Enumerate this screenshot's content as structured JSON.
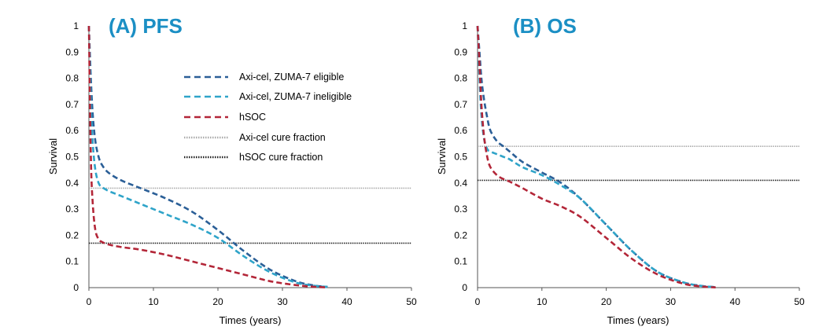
{
  "chart_data": [
    {
      "type": "line",
      "title": "(A) PFS",
      "xlabel": "Times (years)",
      "ylabel": "Survival",
      "xlim": [
        0,
        50
      ],
      "ylim": [
        0,
        1
      ],
      "xticks": [
        "0",
        "10",
        "20",
        "30",
        "40",
        "50"
      ],
      "yticks": [
        "0",
        "0.1",
        "0.2",
        "0.3",
        "0.4",
        "0.5",
        "0.6",
        "0.7",
        "0.8",
        "0.9",
        "1"
      ],
      "series": [
        {
          "name": "Axi-cel, ZUMA-7 eligible",
          "color": "#2b5f97",
          "style": "dashed",
          "x": [
            0,
            0.3,
            0.6,
            1,
            1.5,
            2,
            3,
            5,
            8,
            12,
            16,
            20,
            24,
            28,
            32,
            35,
            37
          ],
          "y": [
            1,
            0.8,
            0.66,
            0.56,
            0.5,
            0.47,
            0.44,
            0.41,
            0.38,
            0.34,
            0.29,
            0.22,
            0.14,
            0.07,
            0.025,
            0.008,
            0.003
          ]
        },
        {
          "name": "Axi-cel, ZUMA-7 ineligible",
          "color": "#2fa4c9",
          "style": "dashed",
          "x": [
            0,
            0.3,
            0.6,
            1,
            1.5,
            2,
            3,
            5,
            8,
            12,
            16,
            20,
            24,
            28,
            32,
            35,
            37
          ],
          "y": [
            1,
            0.7,
            0.55,
            0.45,
            0.4,
            0.385,
            0.37,
            0.35,
            0.32,
            0.28,
            0.24,
            0.19,
            0.12,
            0.06,
            0.02,
            0.007,
            0.003
          ]
        },
        {
          "name": "hSOC",
          "color": "#b32638",
          "style": "dashed",
          "x": [
            0,
            0.3,
            0.6,
            1,
            1.5,
            2,
            3,
            5,
            8,
            12,
            16,
            20,
            24,
            28,
            32,
            35,
            37
          ],
          "y": [
            1,
            0.5,
            0.32,
            0.22,
            0.185,
            0.175,
            0.165,
            0.155,
            0.145,
            0.125,
            0.1,
            0.075,
            0.05,
            0.025,
            0.01,
            0.003,
            0.001
          ]
        }
      ],
      "reference_lines": [
        {
          "name": "Axi-cel cure fraction",
          "y": 0.38,
          "color": "#aaaaaa",
          "style": "dotted"
        },
        {
          "name": "hSOC cure fraction",
          "y": 0.17,
          "color": "#222222",
          "style": "dotted"
        }
      ],
      "legend": "top-right"
    },
    {
      "type": "line",
      "title": "(B) OS",
      "xlabel": "Times (years)",
      "ylabel": "Survival",
      "xlim": [
        0,
        50
      ],
      "ylim": [
        0,
        1
      ],
      "xticks": [
        "0",
        "10",
        "20",
        "30",
        "40",
        "50"
      ],
      "yticks": [
        "0",
        "0.1",
        "0.2",
        "0.3",
        "0.4",
        "0.5",
        "0.6",
        "0.7",
        "0.8",
        "0.9",
        "1"
      ],
      "series": [
        {
          "name": "Axi-cel, ZUMA-7 eligible",
          "color": "#2b5f97",
          "style": "dashed",
          "x": [
            0,
            0.3,
            0.6,
            1,
            1.5,
            2,
            3,
            4,
            5,
            7,
            10,
            13,
            16,
            20,
            24,
            28,
            32,
            35,
            37
          ],
          "y": [
            1,
            0.9,
            0.8,
            0.72,
            0.65,
            0.6,
            0.56,
            0.54,
            0.52,
            0.48,
            0.44,
            0.4,
            0.34,
            0.24,
            0.14,
            0.06,
            0.02,
            0.006,
            0.002
          ]
        },
        {
          "name": "Axi-cel, ZUMA-7 ineligible",
          "color": "#2fa4c9",
          "style": "dashed",
          "x": [
            0,
            0.3,
            0.6,
            1,
            1.5,
            2,
            3,
            4,
            5,
            7,
            10,
            13,
            16,
            20,
            24,
            28,
            32,
            35,
            37
          ],
          "y": [
            1,
            0.8,
            0.66,
            0.57,
            0.53,
            0.52,
            0.51,
            0.5,
            0.49,
            0.46,
            0.43,
            0.39,
            0.34,
            0.24,
            0.14,
            0.06,
            0.02,
            0.006,
            0.002
          ]
        },
        {
          "name": "hSOC",
          "color": "#b32638",
          "style": "dashed",
          "x": [
            0,
            0.3,
            0.6,
            1,
            1.5,
            2,
            3,
            4,
            5,
            7,
            10,
            13,
            16,
            20,
            24,
            28,
            32,
            35,
            37
          ],
          "y": [
            1,
            0.85,
            0.7,
            0.58,
            0.5,
            0.46,
            0.43,
            0.415,
            0.405,
            0.38,
            0.34,
            0.31,
            0.27,
            0.19,
            0.11,
            0.05,
            0.015,
            0.004,
            0.001
          ]
        }
      ],
      "reference_lines": [
        {
          "name": "Axi-cel cure fraction",
          "y": 0.54,
          "color": "#aaaaaa",
          "style": "dotted"
        },
        {
          "name": "hSOC cure fraction",
          "y": 0.41,
          "color": "#222222",
          "style": "dotted"
        }
      ]
    }
  ],
  "title_color": "#1b8fc4"
}
